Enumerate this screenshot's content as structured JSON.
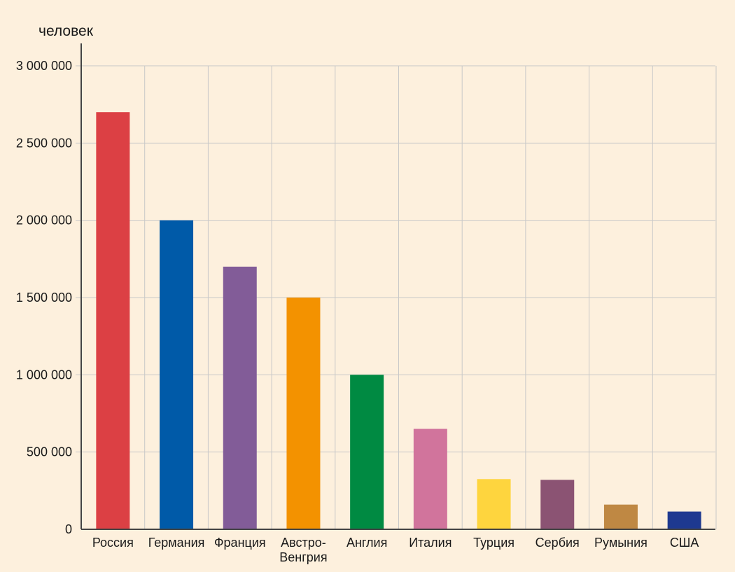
{
  "chart_data": {
    "type": "bar",
    "ylabel": "человек",
    "ylim": [
      0,
      3000000
    ],
    "yticks": [
      0,
      500000,
      1000000,
      1500000,
      2000000,
      2500000,
      3000000
    ],
    "ytick_labels": [
      "0",
      "500 000",
      "1 000 000",
      "1 500 000",
      "2 000 000",
      "2 500 000",
      "3 000 000"
    ],
    "grid": true,
    "legend": "none",
    "categories": [
      "Россия",
      "Германия",
      "Франция",
      "Австро-Венгрия",
      "Англия",
      "Италия",
      "Турция",
      "Сербия",
      "Румыния",
      "США"
    ],
    "category_labels": [
      [
        "Россия"
      ],
      [
        "Германия"
      ],
      [
        "Франция"
      ],
      [
        "Австро-",
        "Венгрия"
      ],
      [
        "Англия"
      ],
      [
        "Италия"
      ],
      [
        "Турция"
      ],
      [
        "Сербия"
      ],
      [
        "Румыния"
      ],
      [
        "США"
      ]
    ],
    "values": [
      2700000,
      2000000,
      1700000,
      1500000,
      1000000,
      650000,
      325000,
      320000,
      160000,
      115000
    ],
    "colors": [
      "#dc4044",
      "#005aa8",
      "#825c98",
      "#f39200",
      "#008a42",
      "#d1749c",
      "#fed53e",
      "#8b5373",
      "#bf8843",
      "#1e3990"
    ]
  }
}
